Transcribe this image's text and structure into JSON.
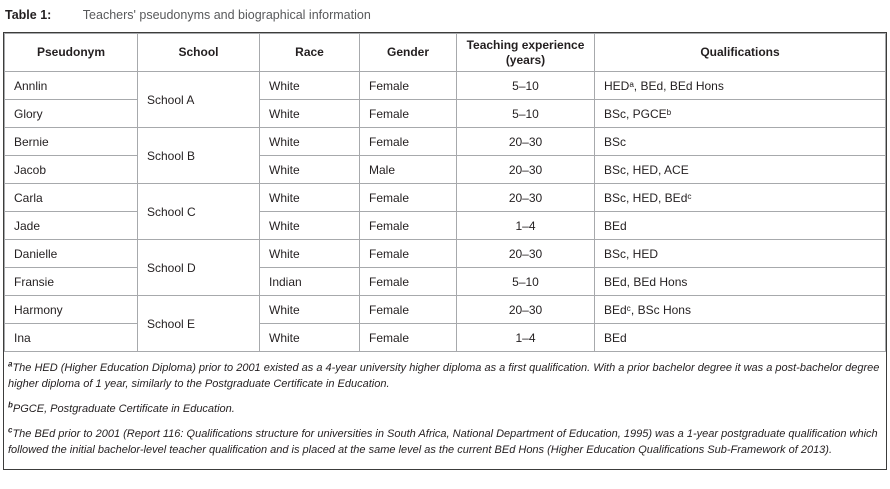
{
  "title": {
    "label": "Table 1:",
    "text": "Teachers' pseudonyms and biographical information"
  },
  "table": {
    "headers": {
      "pseudonym": "Pseudonym",
      "school": "School",
      "race": "Race",
      "gender": "Gender",
      "experience": "Teaching experience (years)",
      "qualifications": "Qualifications"
    },
    "groups": [
      {
        "school": "School A",
        "rows": [
          {
            "pseudonym": "Annlin",
            "race": "White",
            "gender": "Female",
            "experience": "5–10",
            "qualifications": "HEDᵃ, BEd, BEd Hons"
          },
          {
            "pseudonym": "Glory",
            "race": "White",
            "gender": "Female",
            "experience": "5–10",
            "qualifications": "BSc, PGCEᵇ"
          }
        ]
      },
      {
        "school": "School B",
        "rows": [
          {
            "pseudonym": "Bernie",
            "race": "White",
            "gender": "Female",
            "experience": "20–30",
            "qualifications": "BSc"
          },
          {
            "pseudonym": "Jacob",
            "race": "White",
            "gender": "Male",
            "experience": "20–30",
            "qualifications": "BSc, HED, ACE"
          }
        ]
      },
      {
        "school": "School C",
        "rows": [
          {
            "pseudonym": "Carla",
            "race": "White",
            "gender": "Female",
            "experience": "20–30",
            "qualifications": "BSc, HED, BEdᶜ"
          },
          {
            "pseudonym": "Jade",
            "race": "White",
            "gender": "Female",
            "experience": "1–4",
            "qualifications": "BEd"
          }
        ]
      },
      {
        "school": "School D",
        "rows": [
          {
            "pseudonym": "Danielle",
            "race": "White",
            "gender": "Female",
            "experience": "20–30",
            "qualifications": "BSc, HED"
          },
          {
            "pseudonym": "Fransie",
            "race": "Indian",
            "gender": "Female",
            "experience": "5–10",
            "qualifications": "BEd, BEd Hons"
          }
        ]
      },
      {
        "school": "School E",
        "rows": [
          {
            "pseudonym": "Harmony",
            "race": "White",
            "gender": "Female",
            "experience": "20–30",
            "qualifications": "BEdᶜ, BSc Hons"
          },
          {
            "pseudonym": "Ina",
            "race": "White",
            "gender": "Female",
            "experience": "1–4",
            "qualifications": "BEd"
          }
        ]
      }
    ]
  },
  "footnotes": [
    {
      "marker": "a",
      "text": "The HED (Higher Education Diploma) prior to 2001 existed as a 4-year university higher diploma as a first qualification. With a prior bachelor degree it was a post-bachelor degree higher diploma of 1 year, similarly to the Postgraduate Certificate in Education."
    },
    {
      "marker": "b",
      "text": "PGCE, Postgraduate Certificate in Education."
    },
    {
      "marker": "c",
      "text": "The BEd prior to 2001 (Report 116: Qualifications structure for universities in South Africa, National Department of Education, 1995) was a 1-year postgraduate qualification which followed the initial bachelor-level teacher qualification and is placed at the same level as the current BEd Hons (Higher Education Qualifications Sub-Framework of 2013)."
    }
  ]
}
